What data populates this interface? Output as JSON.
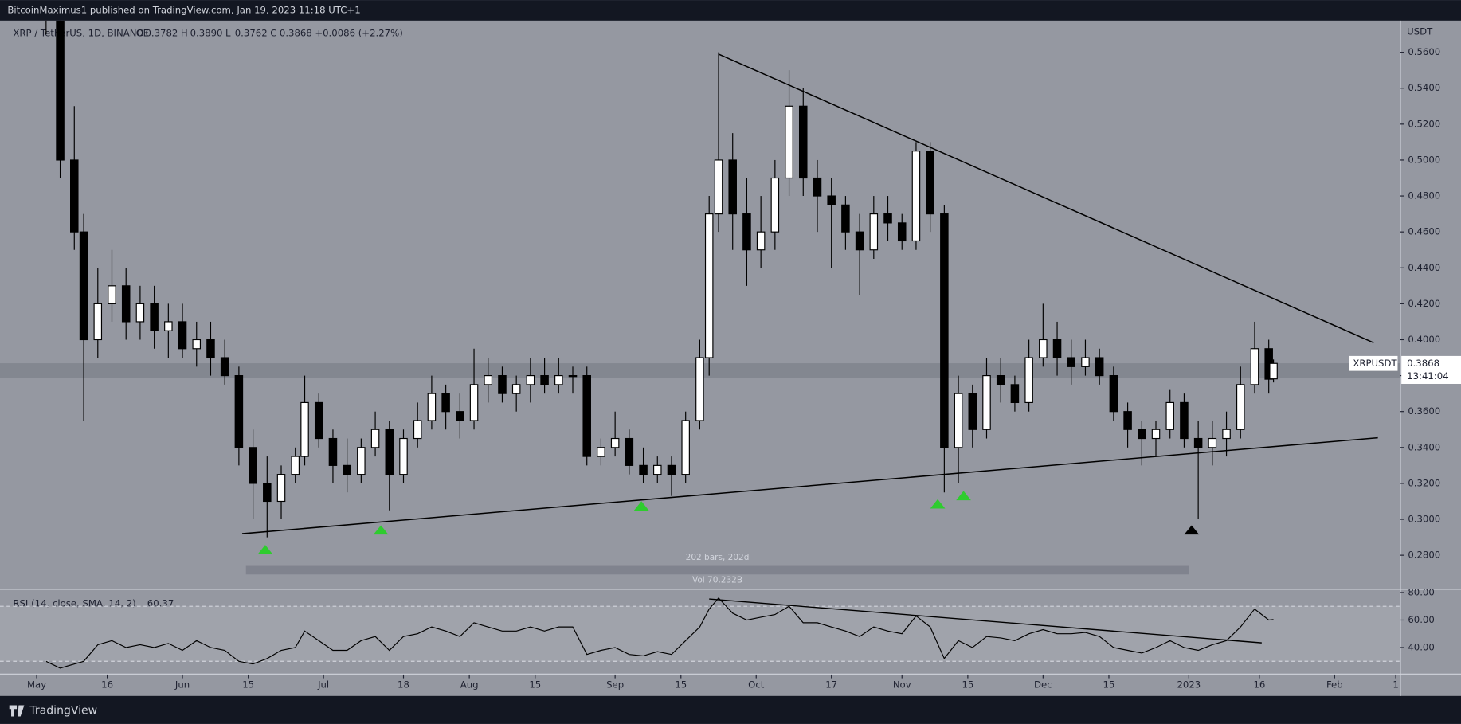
{
  "header": {
    "publisher": "BitcoinMaximus1 published on TradingView.com, Jan 19, 2023 11:18 UTC+1",
    "brand": "TradingView"
  },
  "chart_data": {
    "type": "candlestick",
    "symbol": "XRP / TetherUS, 1D, BINANCE",
    "legend": [
      "O",
      "0.3782",
      "H",
      "0.3890",
      "L",
      "0.3762",
      "C",
      "0.3868",
      "+0.0086 (+2.27%)"
    ],
    "currency": "USDT",
    "price_tag": {
      "symbol": "XRPUSDT",
      "price": "0.3868",
      "countdown": "13:41:04"
    },
    "up_color": "#ffffff",
    "down_color": "#000000",
    "xlim": [
      -7.8,
      290
    ],
    "xticks": [
      {
        "value": 0,
        "label": "May"
      },
      {
        "value": 15,
        "label": "16"
      },
      {
        "value": 31,
        "label": "Jun"
      },
      {
        "value": 45,
        "label": "15"
      },
      {
        "value": 61,
        "label": "Jul"
      },
      {
        "value": 78,
        "label": "18"
      },
      {
        "value": 92,
        "label": "Aug"
      },
      {
        "value": 106,
        "label": "15"
      },
      {
        "value": 123,
        "label": "Sep"
      },
      {
        "value": 137,
        "label": "15"
      },
      {
        "value": 153,
        "label": "Oct"
      },
      {
        "value": 169,
        "label": "17"
      },
      {
        "value": 184,
        "label": "Nov"
      },
      {
        "value": 198,
        "label": "15"
      },
      {
        "value": 214,
        "label": "Dec"
      },
      {
        "value": 228,
        "label": "15"
      },
      {
        "value": 245,
        "label": "2023"
      },
      {
        "value": 260,
        "label": "16"
      },
      {
        "value": 276,
        "label": "Feb"
      },
      {
        "value": 289,
        "label": "1"
      }
    ],
    "ylim": [
      0.2613,
      0.5735
    ],
    "yticks": [
      {
        "value": 0.28,
        "label": "0.2800"
      },
      {
        "value": 0.3,
        "label": "0.3000"
      },
      {
        "value": 0.32,
        "label": "0.3200"
      },
      {
        "value": 0.34,
        "label": "0.3400"
      },
      {
        "value": 0.36,
        "label": "0.3600"
      },
      {
        "value": 0.38,
        "label": "0.3800"
      },
      {
        "value": 0.4,
        "label": "0.4000"
      },
      {
        "value": 0.42,
        "label": "0.4200"
      },
      {
        "value": 0.44,
        "label": "0.4400"
      },
      {
        "value": 0.46,
        "label": "0.4600"
      },
      {
        "value": 0.48,
        "label": "0.4800"
      },
      {
        "value": 0.5,
        "label": "0.5000"
      },
      {
        "value": 0.52,
        "label": "0.5200"
      },
      {
        "value": 0.54,
        "label": "0.5400"
      },
      {
        "value": 0.56,
        "label": "0.5600"
      }
    ],
    "candles": [
      {
        "x": 2,
        "open": 0.6,
        "high": 0.62,
        "low": 0.57,
        "close": 0.58,
        "rsi": 30
      },
      {
        "x": 5,
        "open": 0.58,
        "high": 0.59,
        "low": 0.49,
        "close": 0.5,
        "rsi": 25
      },
      {
        "x": 8,
        "open": 0.5,
        "high": 0.53,
        "low": 0.45,
        "close": 0.46,
        "rsi": 28
      },
      {
        "x": 10,
        "open": 0.46,
        "high": 0.47,
        "low": 0.355,
        "close": 0.4,
        "rsi": 30
      },
      {
        "x": 13,
        "open": 0.4,
        "high": 0.44,
        "low": 0.39,
        "close": 0.42,
        "rsi": 42
      },
      {
        "x": 16,
        "open": 0.42,
        "high": 0.45,
        "low": 0.41,
        "close": 0.43,
        "rsi": 45
      },
      {
        "x": 19,
        "open": 0.43,
        "high": 0.44,
        "low": 0.4,
        "close": 0.41,
        "rsi": 40
      },
      {
        "x": 22,
        "open": 0.41,
        "high": 0.43,
        "low": 0.4,
        "close": 0.42,
        "rsi": 42
      },
      {
        "x": 25,
        "open": 0.42,
        "high": 0.43,
        "low": 0.395,
        "close": 0.405,
        "rsi": 40
      },
      {
        "x": 28,
        "open": 0.405,
        "high": 0.42,
        "low": 0.39,
        "close": 0.41,
        "rsi": 43
      },
      {
        "x": 31,
        "open": 0.41,
        "high": 0.42,
        "low": 0.39,
        "close": 0.395,
        "rsi": 38
      },
      {
        "x": 34,
        "open": 0.395,
        "high": 0.41,
        "low": 0.385,
        "close": 0.4,
        "rsi": 45
      },
      {
        "x": 37,
        "open": 0.4,
        "high": 0.41,
        "low": 0.38,
        "close": 0.39,
        "rsi": 40
      },
      {
        "x": 40,
        "open": 0.39,
        "high": 0.4,
        "low": 0.375,
        "close": 0.38,
        "rsi": 38
      },
      {
        "x": 43,
        "open": 0.38,
        "high": 0.385,
        "low": 0.33,
        "close": 0.34,
        "rsi": 30
      },
      {
        "x": 46,
        "open": 0.34,
        "high": 0.35,
        "low": 0.3,
        "close": 0.32,
        "rsi": 28
      },
      {
        "x": 49,
        "open": 0.32,
        "high": 0.335,
        "low": 0.29,
        "close": 0.31,
        "rsi": 32
      },
      {
        "x": 52,
        "open": 0.31,
        "high": 0.33,
        "low": 0.3,
        "close": 0.325,
        "rsi": 38
      },
      {
        "x": 55,
        "open": 0.325,
        "high": 0.34,
        "low": 0.32,
        "close": 0.335,
        "rsi": 40
      },
      {
        "x": 57,
        "open": 0.335,
        "high": 0.38,
        "low": 0.33,
        "close": 0.365,
        "rsi": 52
      },
      {
        "x": 60,
        "open": 0.365,
        "high": 0.37,
        "low": 0.34,
        "close": 0.345,
        "rsi": 45
      },
      {
        "x": 63,
        "open": 0.345,
        "high": 0.35,
        "low": 0.32,
        "close": 0.33,
        "rsi": 38
      },
      {
        "x": 66,
        "open": 0.33,
        "high": 0.345,
        "low": 0.315,
        "close": 0.325,
        "rsi": 38
      },
      {
        "x": 69,
        "open": 0.325,
        "high": 0.345,
        "low": 0.32,
        "close": 0.34,
        "rsi": 45
      },
      {
        "x": 72,
        "open": 0.34,
        "high": 0.36,
        "low": 0.335,
        "close": 0.35,
        "rsi": 48
      },
      {
        "x": 75,
        "open": 0.35,
        "high": 0.355,
        "low": 0.305,
        "close": 0.325,
        "rsi": 38
      },
      {
        "x": 78,
        "open": 0.325,
        "high": 0.35,
        "low": 0.32,
        "close": 0.345,
        "rsi": 48
      },
      {
        "x": 81,
        "open": 0.345,
        "high": 0.365,
        "low": 0.34,
        "close": 0.355,
        "rsi": 50
      },
      {
        "x": 84,
        "open": 0.355,
        "high": 0.38,
        "low": 0.35,
        "close": 0.37,
        "rsi": 55
      },
      {
        "x": 87,
        "open": 0.37,
        "high": 0.375,
        "low": 0.35,
        "close": 0.36,
        "rsi": 52
      },
      {
        "x": 90,
        "open": 0.36,
        "high": 0.37,
        "low": 0.345,
        "close": 0.355,
        "rsi": 48
      },
      {
        "x": 93,
        "open": 0.355,
        "high": 0.395,
        "low": 0.35,
        "close": 0.375,
        "rsi": 58
      },
      {
        "x": 96,
        "open": 0.375,
        "high": 0.39,
        "low": 0.365,
        "close": 0.38,
        "rsi": 55
      },
      {
        "x": 99,
        "open": 0.38,
        "high": 0.385,
        "low": 0.365,
        "close": 0.37,
        "rsi": 52
      },
      {
        "x": 102,
        "open": 0.37,
        "high": 0.38,
        "low": 0.36,
        "close": 0.375,
        "rsi": 52
      },
      {
        "x": 105,
        "open": 0.375,
        "high": 0.39,
        "low": 0.365,
        "close": 0.38,
        "rsi": 55
      },
      {
        "x": 108,
        "open": 0.38,
        "high": 0.39,
        "low": 0.37,
        "close": 0.375,
        "rsi": 52
      },
      {
        "x": 111,
        "open": 0.375,
        "high": 0.39,
        "low": 0.37,
        "close": 0.38,
        "rsi": 55
      },
      {
        "x": 114,
        "open": 0.38,
        "high": 0.385,
        "low": 0.37,
        "close": 0.38,
        "rsi": 55
      },
      {
        "x": 117,
        "open": 0.38,
        "high": 0.385,
        "low": 0.33,
        "close": 0.335,
        "rsi": 35
      },
      {
        "x": 120,
        "open": 0.335,
        "high": 0.345,
        "low": 0.33,
        "close": 0.34,
        "rsi": 38
      },
      {
        "x": 123,
        "open": 0.34,
        "high": 0.36,
        "low": 0.335,
        "close": 0.345,
        "rsi": 40
      },
      {
        "x": 126,
        "open": 0.345,
        "high": 0.35,
        "low": 0.325,
        "close": 0.33,
        "rsi": 35
      },
      {
        "x": 129,
        "open": 0.33,
        "high": 0.34,
        "low": 0.32,
        "close": 0.325,
        "rsi": 34
      },
      {
        "x": 132,
        "open": 0.325,
        "high": 0.335,
        "low": 0.32,
        "close": 0.33,
        "rsi": 37
      },
      {
        "x": 135,
        "open": 0.33,
        "high": 0.335,
        "low": 0.313,
        "close": 0.325,
        "rsi": 35
      },
      {
        "x": 138,
        "open": 0.325,
        "high": 0.36,
        "low": 0.32,
        "close": 0.355,
        "rsi": 45
      },
      {
        "x": 141,
        "open": 0.355,
        "high": 0.4,
        "low": 0.35,
        "close": 0.39,
        "rsi": 55
      },
      {
        "x": 143,
        "open": 0.39,
        "high": 0.48,
        "low": 0.38,
        "close": 0.47,
        "rsi": 68
      },
      {
        "x": 145,
        "open": 0.47,
        "high": 0.56,
        "low": 0.46,
        "close": 0.5,
        "rsi": 76
      },
      {
        "x": 148,
        "open": 0.5,
        "high": 0.515,
        "low": 0.45,
        "close": 0.47,
        "rsi": 65
      },
      {
        "x": 151,
        "open": 0.47,
        "high": 0.49,
        "low": 0.43,
        "close": 0.45,
        "rsi": 60
      },
      {
        "x": 154,
        "open": 0.45,
        "high": 0.48,
        "low": 0.44,
        "close": 0.46,
        "rsi": 62
      },
      {
        "x": 157,
        "open": 0.46,
        "high": 0.5,
        "low": 0.45,
        "close": 0.49,
        "rsi": 64
      },
      {
        "x": 160,
        "open": 0.49,
        "high": 0.55,
        "low": 0.48,
        "close": 0.53,
        "rsi": 70
      },
      {
        "x": 163,
        "open": 0.53,
        "high": 0.54,
        "low": 0.48,
        "close": 0.49,
        "rsi": 58
      },
      {
        "x": 166,
        "open": 0.49,
        "high": 0.5,
        "low": 0.46,
        "close": 0.48,
        "rsi": 58
      },
      {
        "x": 169,
        "open": 0.48,
        "high": 0.49,
        "low": 0.44,
        "close": 0.475,
        "rsi": 55
      },
      {
        "x": 172,
        "open": 0.475,
        "high": 0.48,
        "low": 0.45,
        "close": 0.46,
        "rsi": 52
      },
      {
        "x": 175,
        "open": 0.46,
        "high": 0.47,
        "low": 0.425,
        "close": 0.45,
        "rsi": 48
      },
      {
        "x": 178,
        "open": 0.45,
        "high": 0.48,
        "low": 0.445,
        "close": 0.47,
        "rsi": 55
      },
      {
        "x": 181,
        "open": 0.47,
        "high": 0.48,
        "low": 0.455,
        "close": 0.465,
        "rsi": 52
      },
      {
        "x": 184,
        "open": 0.465,
        "high": 0.47,
        "low": 0.45,
        "close": 0.455,
        "rsi": 50
      },
      {
        "x": 187,
        "open": 0.455,
        "high": 0.51,
        "low": 0.45,
        "close": 0.505,
        "rsi": 63
      },
      {
        "x": 190,
        "open": 0.505,
        "high": 0.51,
        "low": 0.46,
        "close": 0.47,
        "rsi": 55
      },
      {
        "x": 193,
        "open": 0.47,
        "high": 0.475,
        "low": 0.315,
        "close": 0.34,
        "rsi": 32
      },
      {
        "x": 196,
        "open": 0.34,
        "high": 0.38,
        "low": 0.32,
        "close": 0.37,
        "rsi": 45
      },
      {
        "x": 199,
        "open": 0.37,
        "high": 0.375,
        "low": 0.34,
        "close": 0.35,
        "rsi": 40
      },
      {
        "x": 202,
        "open": 0.35,
        "high": 0.39,
        "low": 0.345,
        "close": 0.38,
        "rsi": 48
      },
      {
        "x": 205,
        "open": 0.38,
        "high": 0.39,
        "low": 0.365,
        "close": 0.375,
        "rsi": 47
      },
      {
        "x": 208,
        "open": 0.375,
        "high": 0.38,
        "low": 0.36,
        "close": 0.365,
        "rsi": 45
      },
      {
        "x": 211,
        "open": 0.365,
        "high": 0.4,
        "low": 0.36,
        "close": 0.39,
        "rsi": 50
      },
      {
        "x": 214,
        "open": 0.39,
        "high": 0.42,
        "low": 0.385,
        "close": 0.4,
        "rsi": 53
      },
      {
        "x": 217,
        "open": 0.4,
        "high": 0.41,
        "low": 0.38,
        "close": 0.39,
        "rsi": 50
      },
      {
        "x": 220,
        "open": 0.39,
        "high": 0.4,
        "low": 0.375,
        "close": 0.385,
        "rsi": 50
      },
      {
        "x": 223,
        "open": 0.385,
        "high": 0.4,
        "low": 0.38,
        "close": 0.39,
        "rsi": 51
      },
      {
        "x": 226,
        "open": 0.39,
        "high": 0.395,
        "low": 0.375,
        "close": 0.38,
        "rsi": 48
      },
      {
        "x": 229,
        "open": 0.38,
        "high": 0.385,
        "low": 0.355,
        "close": 0.36,
        "rsi": 40
      },
      {
        "x": 232,
        "open": 0.36,
        "high": 0.365,
        "low": 0.34,
        "close": 0.35,
        "rsi": 38
      },
      {
        "x": 235,
        "open": 0.35,
        "high": 0.355,
        "low": 0.33,
        "close": 0.345,
        "rsi": 36
      },
      {
        "x": 238,
        "open": 0.345,
        "high": 0.355,
        "low": 0.335,
        "close": 0.35,
        "rsi": 40
      },
      {
        "x": 241,
        "open": 0.35,
        "high": 0.372,
        "low": 0.345,
        "close": 0.365,
        "rsi": 45
      },
      {
        "x": 244,
        "open": 0.365,
        "high": 0.37,
        "low": 0.34,
        "close": 0.345,
        "rsi": 40
      },
      {
        "x": 247,
        "open": 0.345,
        "high": 0.355,
        "low": 0.3,
        "close": 0.34,
        "rsi": 38
      },
      {
        "x": 250,
        "open": 0.34,
        "high": 0.355,
        "low": 0.33,
        "close": 0.345,
        "rsi": 42
      },
      {
        "x": 253,
        "open": 0.345,
        "high": 0.36,
        "low": 0.335,
        "close": 0.35,
        "rsi": 45
      },
      {
        "x": 256,
        "open": 0.35,
        "high": 0.385,
        "low": 0.345,
        "close": 0.375,
        "rsi": 55
      },
      {
        "x": 259,
        "open": 0.375,
        "high": 0.41,
        "low": 0.37,
        "close": 0.395,
        "rsi": 68
      },
      {
        "x": 262,
        "open": 0.395,
        "high": 0.4,
        "low": 0.37,
        "close": 0.378,
        "rsi": 60
      },
      {
        "x": 263,
        "open": 0.3782,
        "high": 0.389,
        "low": 0.3762,
        "close": 0.3868,
        "rsi": 60.37
      }
    ],
    "trendlines": [
      {
        "x": [
          145,
          284.3
        ],
        "y": [
          0.559,
          0.3983
        ],
        "color": "#000000"
      },
      {
        "x": [
          43.7,
          285.2
        ],
        "y": [
          0.292,
          0.3454
        ],
        "color": "#000000"
      }
    ],
    "zone": {
      "y": [
        0.3786,
        0.3869
      ],
      "color": "#787b86"
    },
    "range_box": {
      "x": [
        44.5,
        245
      ],
      "y": [
        0.2693,
        0.2745
      ],
      "text": "202 bars, 202d",
      "volume": "Vol 70.232B"
    },
    "markers": [
      {
        "x": 48.6,
        "y": 0.2832,
        "color": "#2ecc2e"
      },
      {
        "x": 73.2,
        "y": 0.2941,
        "color": "#2ecc2e"
      },
      {
        "x": 128.6,
        "y": 0.3075,
        "color": "#2ecc2e"
      },
      {
        "x": 191.6,
        "y": 0.3086,
        "color": "#2ecc2e"
      },
      {
        "x": 197.1,
        "y": 0.3132,
        "color": "#2ecc2e"
      },
      {
        "x": 245.6,
        "y": 0.2941,
        "color": "#000000"
      }
    ],
    "rsi": {
      "title": "RSI (14, close, SMA, 14, 2)",
      "current": "60.37",
      "color": "#000000",
      "ylim": [
        21.7,
        82.7
      ],
      "yticks": [
        {
          "value": 80,
          "label": "80.00"
        },
        {
          "value": 60,
          "label": "60.00"
        },
        {
          "value": 40,
          "label": "40.00"
        }
      ],
      "bands": [
        30,
        70
      ],
      "trendline": {
        "x": [
          143,
          260.5
        ],
        "y": [
          75.3,
          43.4
        ]
      }
    }
  }
}
